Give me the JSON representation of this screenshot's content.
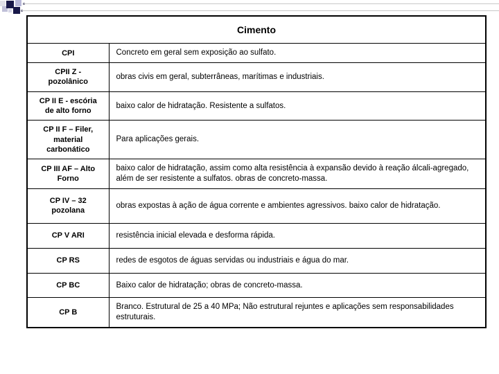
{
  "header": {
    "title": "Cimento"
  },
  "rows": [
    {
      "type": "CPI",
      "desc": "Concreto em geral sem exposição ao sulfato."
    },
    {
      "type": "CPII Z - pozolânico",
      "desc": "obras civis em geral, subterrâneas, marítimas e industriais."
    },
    {
      "type": "CP II E - escória de alto forno",
      "desc": "baixo calor de hidratação. Resistente a sulfatos."
    },
    {
      "type": "CP II F – Filer, material carbonático",
      "desc": "Para aplicações gerais."
    },
    {
      "type": "CP III AF – Alto Forno",
      "desc": "baixo calor de hidratação, assim como alta resistência à expansão devido à reação álcali-agregado, além de ser resistente a sulfatos. obras de concreto-massa."
    },
    {
      "type": "CP IV – 32 pozolana",
      "desc": "obras expostas à ação de água corrente e ambientes agressivos. baixo calor de hidratação."
    },
    {
      "type": "CP V ARI",
      "desc": "resistência inicial elevada e desforma rápida."
    },
    {
      "type": "CP RS",
      "desc": "redes de esgotos de águas servidas ou industriais e água do mar."
    },
    {
      "type": "CP BC",
      "desc": "Baixo calor de hidratação; obras de concreto-massa."
    },
    {
      "type": "CP B",
      "desc": "Branco. Estrutural de 25 a 40 MPa; Não estrutural rejuntes e aplicações sem responsabilidades estruturais."
    }
  ],
  "colors": {
    "border": "#000000",
    "text": "#000000",
    "background": "#ffffff",
    "accent_dark": "#181848",
    "accent_light": "#c0c0d8"
  }
}
